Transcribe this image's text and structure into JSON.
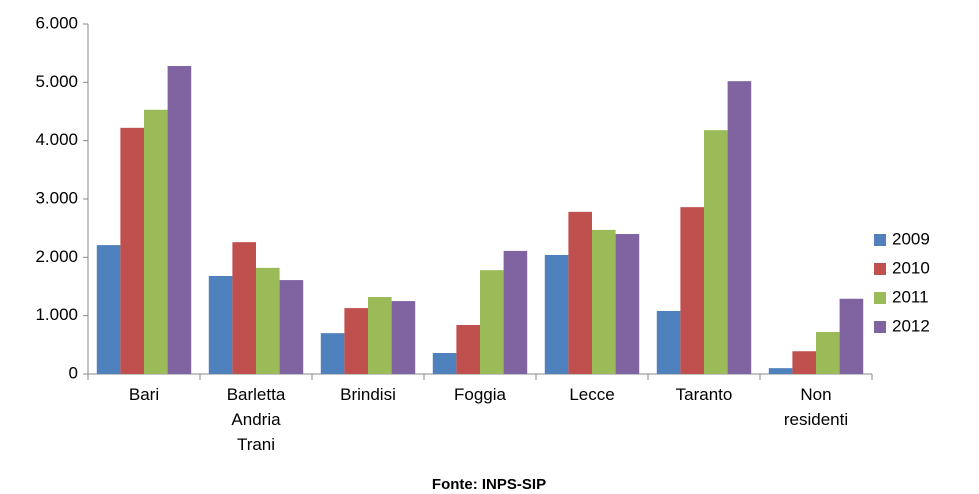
{
  "chart_data": {
    "type": "bar",
    "title": "Fonte: INPS-SIP",
    "categories": [
      "Bari",
      "Barletta Andria Trani",
      "Brindisi",
      "Foggia",
      "Lecce",
      "Taranto",
      "Non residenti"
    ],
    "series": [
      {
        "name": "2009",
        "color": "#4f81bd",
        "values": [
          2210,
          1680,
          700,
          360,
          2040,
          1080,
          100
        ]
      },
      {
        "name": "2010",
        "color": "#c0504d",
        "values": [
          4220,
          2260,
          1130,
          840,
          2780,
          2860,
          390
        ]
      },
      {
        "name": "2011",
        "color": "#9bbb59",
        "values": [
          4530,
          1820,
          1320,
          1780,
          2470,
          4180,
          720
        ]
      },
      {
        "name": "2012",
        "color": "#8064a2",
        "values": [
          5280,
          1610,
          1250,
          2110,
          2400,
          5020,
          1290
        ]
      }
    ],
    "ylim": [
      0,
      6000
    ],
    "yticks": [
      0,
      {
        "value": 1000,
        "label": "1.000"
      },
      {
        "value": 2000,
        "label": "2.000"
      },
      {
        "value": 3000,
        "label": "3.000"
      },
      {
        "value": 4000,
        "label": "4.000"
      },
      {
        "value": 5000,
        "label": "5.000"
      },
      {
        "value": 6000,
        "label": "6.000"
      }
    ],
    "grid": false,
    "legend": "right"
  }
}
